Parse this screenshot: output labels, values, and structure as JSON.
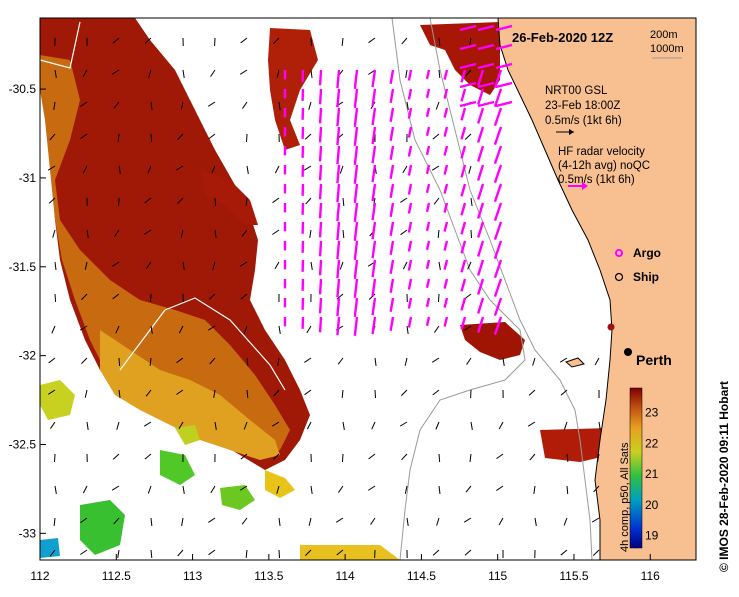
{
  "map": {
    "date_label": "26-Feb-2020 12Z",
    "contours": [
      "200m",
      "1000m"
    ],
    "x_ticks": [
      "112",
      "112.5",
      "113",
      "113.5",
      "114",
      "114.5",
      "115",
      "115.5",
      "116"
    ],
    "y_ticks": [
      "-30.5",
      "-31",
      "-31.5",
      "-32",
      "-32.5",
      "-33"
    ],
    "x_range": [
      112,
      116.3
    ],
    "y_range": [
      -33.15,
      -30.1
    ]
  },
  "legend": {
    "nrt_title": "NRT00 GSL",
    "nrt_date": "23-Feb 18:00Z",
    "nrt_scale": "0.5m/s (1kt 6h)",
    "hf_title": "HF radar velocity",
    "hf_sub": "(4-12h avg) noQC",
    "hf_scale": "0.5m/s (1kt 6h)",
    "argo": "Argo",
    "ship": "Ship",
    "city": "Perth"
  },
  "colorbar": {
    "ticks": [
      "23",
      "22",
      "21",
      "20",
      "19"
    ],
    "label": "4h comp, p50, All Sats"
  },
  "credit": "© IMOS 28-Feb-2020 09:11 Hobart",
  "colors": {
    "land": "#f8c090",
    "hf_vector": "#ff00ff",
    "sst_warm": "#a01000",
    "sst_mid": "#d07010",
    "sst_cool": "#e8c010",
    "sst_cold": "#40c020"
  }
}
